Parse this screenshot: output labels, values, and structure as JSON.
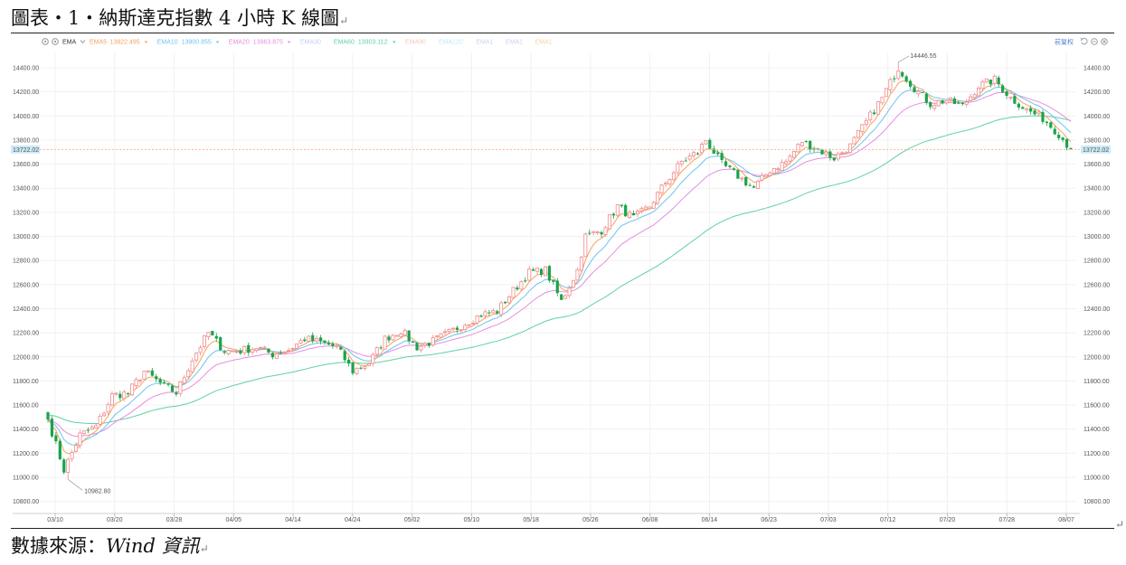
{
  "document": {
    "title": "圖表‧1‧納斯達克指數 4 小時 K 線圖",
    "source_label": "數據來源：",
    "source_name": "Wind 資訊",
    "paragraph_mark": "↵"
  },
  "toolbar": {
    "indicator": "EMA",
    "right_label": "前复权",
    "icons": [
      "gear-icon",
      "eye-icon",
      "chevron-down-icon",
      "undo-icon",
      "minus-circle-icon",
      "close-circle-icon"
    ]
  },
  "colors": {
    "up": "#f08a8a",
    "down": "#1aa34a",
    "ema5": "#f5a25d",
    "ema10": "#6ec3ee",
    "ema20": "#e58ee0",
    "ema60": "#5fd1a6",
    "last_price": "#f5b895"
  },
  "chart_data": {
    "type": "candlestick",
    "legend": [
      {
        "name": "EMA5",
        "value": "13822.495",
        "color": "#f5a25d"
      },
      {
        "name": "EMA10",
        "value": "13900.855",
        "color": "#6ec3ee"
      },
      {
        "name": "EMA20",
        "value": "13963.875",
        "color": "#e58ee0"
      },
      {
        "name": "EMA30",
        "value": "",
        "color": "#c7cdf0"
      },
      {
        "name": "EMA60",
        "value": "13903.112",
        "color": "#5fd1a6"
      },
      {
        "name": "EMA90",
        "value": "",
        "color": "#f9c7c0"
      },
      {
        "name": "EMA120",
        "value": "",
        "color": "#bfe8f5"
      },
      {
        "name": "EMA1",
        "value": "",
        "color": "#c6d2f2"
      },
      {
        "name": "EMA1",
        "value": "",
        "color": "#d6c9f1"
      },
      {
        "name": "EMA1",
        "value": "",
        "color": "#f5d49b"
      }
    ],
    "x_tick_labels": [
      "03/10",
      "03/20",
      "03/28",
      "04/05",
      "04/14",
      "04/24",
      "05/02",
      "05/10",
      "05/18",
      "05/26",
      "06/08",
      "06/14",
      "06/23",
      "07/03",
      "07/12",
      "07/20",
      "07/28",
      "08/07"
    ],
    "y_tick_labels": [
      "10800.00",
      "11000.00",
      "11200.00",
      "11400.00",
      "11600.00",
      "11800.00",
      "12000.00",
      "12200.00",
      "12400.00",
      "12600.00",
      "12800.00",
      "13000.00",
      "13200.00",
      "13400.00",
      "13600.00",
      "13800.00",
      "14000.00",
      "14200.00",
      "14400.00"
    ],
    "ylim": [
      10700,
      14520
    ],
    "last_price_label": "13722.02",
    "last_price": 13722,
    "high_label": "14446.55",
    "high": 14446.55,
    "low_label": "10982.80",
    "low": 10982.8,
    "key_closes": [
      [
        0,
        11480
      ],
      [
        4,
        11060
      ],
      [
        8,
        11350
      ],
      [
        12,
        11420
      ],
      [
        16,
        11680
      ],
      [
        20,
        11700
      ],
      [
        24,
        11880
      ],
      [
        28,
        11780
      ],
      [
        32,
        11700
      ],
      [
        36,
        11980
      ],
      [
        40,
        12200
      ],
      [
        44,
        12050
      ],
      [
        48,
        12050
      ],
      [
        52,
        12080
      ],
      [
        56,
        12020
      ],
      [
        60,
        12060
      ],
      [
        64,
        12150
      ],
      [
        68,
        12120
      ],
      [
        72,
        12080
      ],
      [
        76,
        11880
      ],
      [
        80,
        11950
      ],
      [
        84,
        12150
      ],
      [
        88,
        12220
      ],
      [
        92,
        12080
      ],
      [
        96,
        12130
      ],
      [
        100,
        12200
      ],
      [
        104,
        12280
      ],
      [
        108,
        12350
      ],
      [
        112,
        12380
      ],
      [
        116,
        12550
      ],
      [
        120,
        12700
      ],
      [
        124,
        12720
      ],
      [
        128,
        12460
      ],
      [
        132,
        12720
      ],
      [
        134,
        13000
      ],
      [
        138,
        13050
      ],
      [
        142,
        13250
      ],
      [
        146,
        13150
      ],
      [
        150,
        13250
      ],
      [
        154,
        13450
      ],
      [
        158,
        13620
      ],
      [
        162,
        13700
      ],
      [
        164,
        13800
      ],
      [
        168,
        13600
      ],
      [
        172,
        13500
      ],
      [
        176,
        13400
      ],
      [
        180,
        13550
      ],
      [
        184,
        13620
      ],
      [
        188,
        13790
      ],
      [
        192,
        13720
      ],
      [
        196,
        13650
      ],
      [
        200,
        13750
      ],
      [
        204,
        13950
      ],
      [
        208,
        14150
      ],
      [
        212,
        14400
      ],
      [
        216,
        14230
      ],
      [
        220,
        14100
      ],
      [
        224,
        14130
      ],
      [
        228,
        14080
      ],
      [
        232,
        14250
      ],
      [
        236,
        14300
      ],
      [
        240,
        14150
      ],
      [
        244,
        14050
      ],
      [
        248,
        13980
      ],
      [
        252,
        13850
      ],
      [
        255,
        13722
      ]
    ]
  }
}
